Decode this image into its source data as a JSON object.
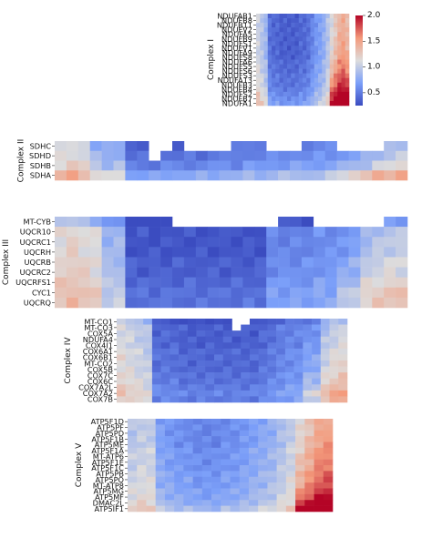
{
  "chart_data": {
    "type": "heatmap",
    "colormap": "coolwarm",
    "colorbar": {
      "min": 0.25,
      "max": 2.0,
      "ticks": [
        "2.0",
        "1.5",
        "1.0",
        "0.5"
      ]
    },
    "panels": [
      {
        "name": "Complex I",
        "columns": 24,
        "rows": [
          "NDUFAB1",
          "NDUFB8",
          "NDUFB11",
          "NDUFV2",
          "NDUFA5",
          "NDUFB9",
          "NDUFS1",
          "NDUFV1",
          "NDUFA9",
          "NDUFS8",
          "NDUFA6",
          "NDUFS5",
          "NDUFS6",
          "NDUFS3",
          "NDUFA13",
          "NDUFB3",
          "NDUFB4",
          "NDUFS2",
          "NDUFB7",
          "NDUFA1"
        ],
        "profile": [
          1.05,
          0.95,
          0.85,
          0.45,
          0.4,
          0.4,
          0.35,
          0.35,
          0.35,
          0.35,
          0.35,
          0.4,
          0.4,
          0.45,
          0.55,
          0.65,
          0.7,
          0.8,
          0.95,
          1.1,
          1.25,
          1.4,
          1.45,
          1.35
        ],
        "row_offset": [
          0.0,
          0.0,
          0.0,
          0.0,
          0.0,
          0.0,
          0.0,
          0.0,
          0.0,
          0.0,
          0.05,
          0.05,
          0.05,
          0.1,
          0.1,
          0.1,
          0.15,
          0.2,
          0.25,
          0.3
        ],
        "tail_boost": [
          0.0,
          0.0,
          0.0,
          0.0,
          0.0,
          0.05,
          0.05,
          0.05,
          0.1,
          0.1,
          0.15,
          0.15,
          0.2,
          0.25,
          0.3,
          0.35,
          0.4,
          0.5,
          0.55,
          0.6
        ]
      },
      {
        "name": "Complex II",
        "columns": 30,
        "rows": [
          "SDHC",
          "SDHD",
          "SDHB",
          "SDHA"
        ],
        "profile": [
          1.1,
          1.15,
          1.1,
          0.85,
          0.8,
          0.8,
          0.45,
          0.4,
          0.4,
          0.45,
          0.45,
          0.45,
          0.45,
          0.5,
          0.5,
          0.5,
          0.55,
          0.55,
          0.55,
          0.6,
          0.6,
          0.6,
          0.6,
          0.65,
          0.65,
          0.7,
          0.8,
          0.9,
          0.95,
          1.0
        ],
        "row_offset": [
          -0.05,
          0.0,
          0.1,
          0.3
        ],
        "tail_boost": [
          0.0,
          0.0,
          0.05,
          0.2
        ],
        "gaps": [
          [
            0,
            8
          ],
          [
            0,
            9
          ],
          [
            0,
            11
          ],
          [
            0,
            12
          ],
          [
            0,
            13
          ],
          [
            0,
            14
          ],
          [
            0,
            18
          ],
          [
            0,
            19
          ],
          [
            0,
            20
          ],
          [
            0,
            24
          ],
          [
            0,
            25
          ],
          [
            0,
            26
          ],
          [
            0,
            27
          ],
          [
            1,
            8
          ]
        ]
      },
      {
        "name": "Complex III",
        "columns": 30,
        "rows": [
          "MT-CYB",
          "UQCR10",
          "UQCRC1",
          "UQCRH",
          "UQCRB",
          "UQCRC2",
          "UQCRFS1",
          "CYC1",
          "UQCRQ"
        ],
        "profile": [
          1.15,
          1.2,
          1.15,
          1.1,
          0.85,
          0.85,
          0.3,
          0.3,
          0.3,
          0.3,
          0.3,
          0.3,
          0.3,
          0.3,
          0.3,
          0.3,
          0.3,
          0.3,
          0.55,
          0.55,
          0.55,
          0.55,
          0.6,
          0.6,
          0.6,
          0.65,
          0.85,
          0.9,
          0.95,
          0.95
        ],
        "row_offset": [
          -0.25,
          0.0,
          0.0,
          0.0,
          0.05,
          0.05,
          0.1,
          0.15,
          0.15
        ],
        "tail_boost": [
          0.0,
          0.0,
          0.05,
          0.05,
          0.1,
          0.1,
          0.15,
          0.2,
          0.2
        ],
        "gaps": [
          [
            0,
            10
          ],
          [
            0,
            11
          ],
          [
            0,
            12
          ],
          [
            0,
            13
          ],
          [
            0,
            14
          ],
          [
            0,
            15
          ],
          [
            0,
            16
          ],
          [
            0,
            17
          ],
          [
            0,
            18
          ],
          [
            0,
            22
          ],
          [
            0,
            23
          ],
          [
            0,
            24
          ],
          [
            0,
            25
          ],
          [
            0,
            26
          ],
          [
            0,
            27
          ]
        ]
      },
      {
        "name": "Complex IV",
        "columns": 26,
        "rows": [
          "MT-CO1",
          "MT-CO3",
          "COX5A",
          "NDUFA4",
          "COX4I1",
          "COX6A1",
          "COX6B1",
          "MT-CO2",
          "COX5B",
          "COX7C",
          "COX6C",
          "COX7A2L",
          "COX7A2",
          "COX7B"
        ],
        "profile": [
          1.1,
          1.05,
          1.0,
          0.95,
          0.4,
          0.4,
          0.4,
          0.35,
          0.35,
          0.35,
          0.35,
          0.35,
          0.35,
          0.35,
          0.35,
          0.35,
          0.4,
          0.45,
          0.5,
          0.55,
          0.55,
          0.6,
          0.6,
          0.9,
          1.0,
          1.05
        ],
        "row_offset": [
          -0.1,
          0.0,
          0.0,
          0.0,
          0.0,
          0.05,
          0.05,
          0.05,
          0.05,
          0.1,
          0.1,
          0.15,
          0.2,
          0.15
        ],
        "tail_boost": [
          0.0,
          0.0,
          0.0,
          0.05,
          0.05,
          0.05,
          0.1,
          0.1,
          0.1,
          0.15,
          0.15,
          0.2,
          0.3,
          0.25
        ],
        "gaps": [
          [
            0,
            13
          ],
          [
            1,
            13
          ],
          [
            0,
            14
          ]
        ]
      },
      {
        "name": "Complex V",
        "columns": 22,
        "rows": [
          "ATP5F1D",
          "ATP5PF",
          "ATP5PD",
          "ATP5F1B",
          "ATP5ME",
          "ATP5F1A",
          "MT-ATP6",
          "ATP5F1E",
          "ATP5F1C",
          "ATP5PB",
          "ATP5PO",
          "MT-ATP8",
          "ATP5MG",
          "ATP5MF",
          "DMAC2L",
          "ATP5IF1"
        ],
        "profile": [
          0.95,
          1.0,
          1.0,
          0.7,
          0.65,
          0.6,
          0.6,
          0.55,
          0.55,
          0.55,
          0.6,
          0.6,
          0.65,
          0.7,
          0.75,
          0.8,
          0.9,
          1.0,
          1.15,
          1.3,
          1.45,
          1.5
        ],
        "row_offset": [
          0.0,
          0.0,
          0.0,
          0.0,
          0.0,
          0.05,
          0.05,
          0.05,
          0.05,
          0.1,
          0.1,
          0.1,
          0.15,
          0.15,
          0.2,
          0.3
        ],
        "tail_boost": [
          0.0,
          0.0,
          0.0,
          0.05,
          0.05,
          0.05,
          0.1,
          0.1,
          0.1,
          0.15,
          0.15,
          0.2,
          0.25,
          0.35,
          0.45,
          0.6
        ]
      }
    ]
  }
}
